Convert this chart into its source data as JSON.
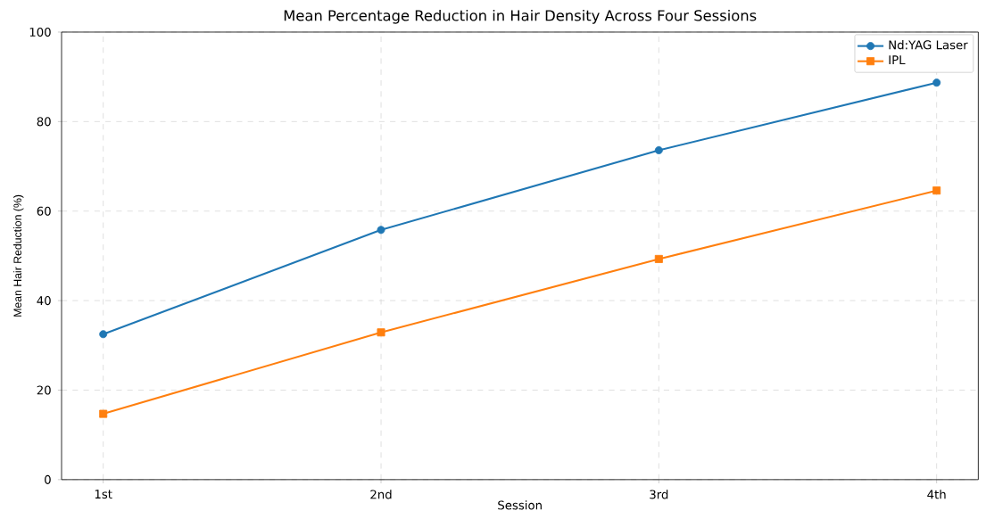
{
  "chart_data": {
    "type": "line",
    "title": "Mean Percentage Reduction in Hair Density Across Four Sessions",
    "xlabel": "Session",
    "ylabel": "Mean Hair Reduction (%)",
    "categories": [
      "1st",
      "2nd",
      "3rd",
      "4th"
    ],
    "series": [
      {
        "name": "Nd:YAG Laser",
        "color": "#1f77b4",
        "marker": "circle",
        "values": [
          32.5,
          55.8,
          73.6,
          88.7
        ]
      },
      {
        "name": "IPL",
        "color": "#ff7f0e",
        "marker": "square",
        "values": [
          14.7,
          32.9,
          49.3,
          64.6
        ]
      }
    ],
    "ylim": [
      0,
      100
    ],
    "yticks": [
      0,
      20,
      40,
      60,
      80,
      100
    ],
    "grid": true,
    "legend": "top right",
    "line_style": "solid"
  }
}
